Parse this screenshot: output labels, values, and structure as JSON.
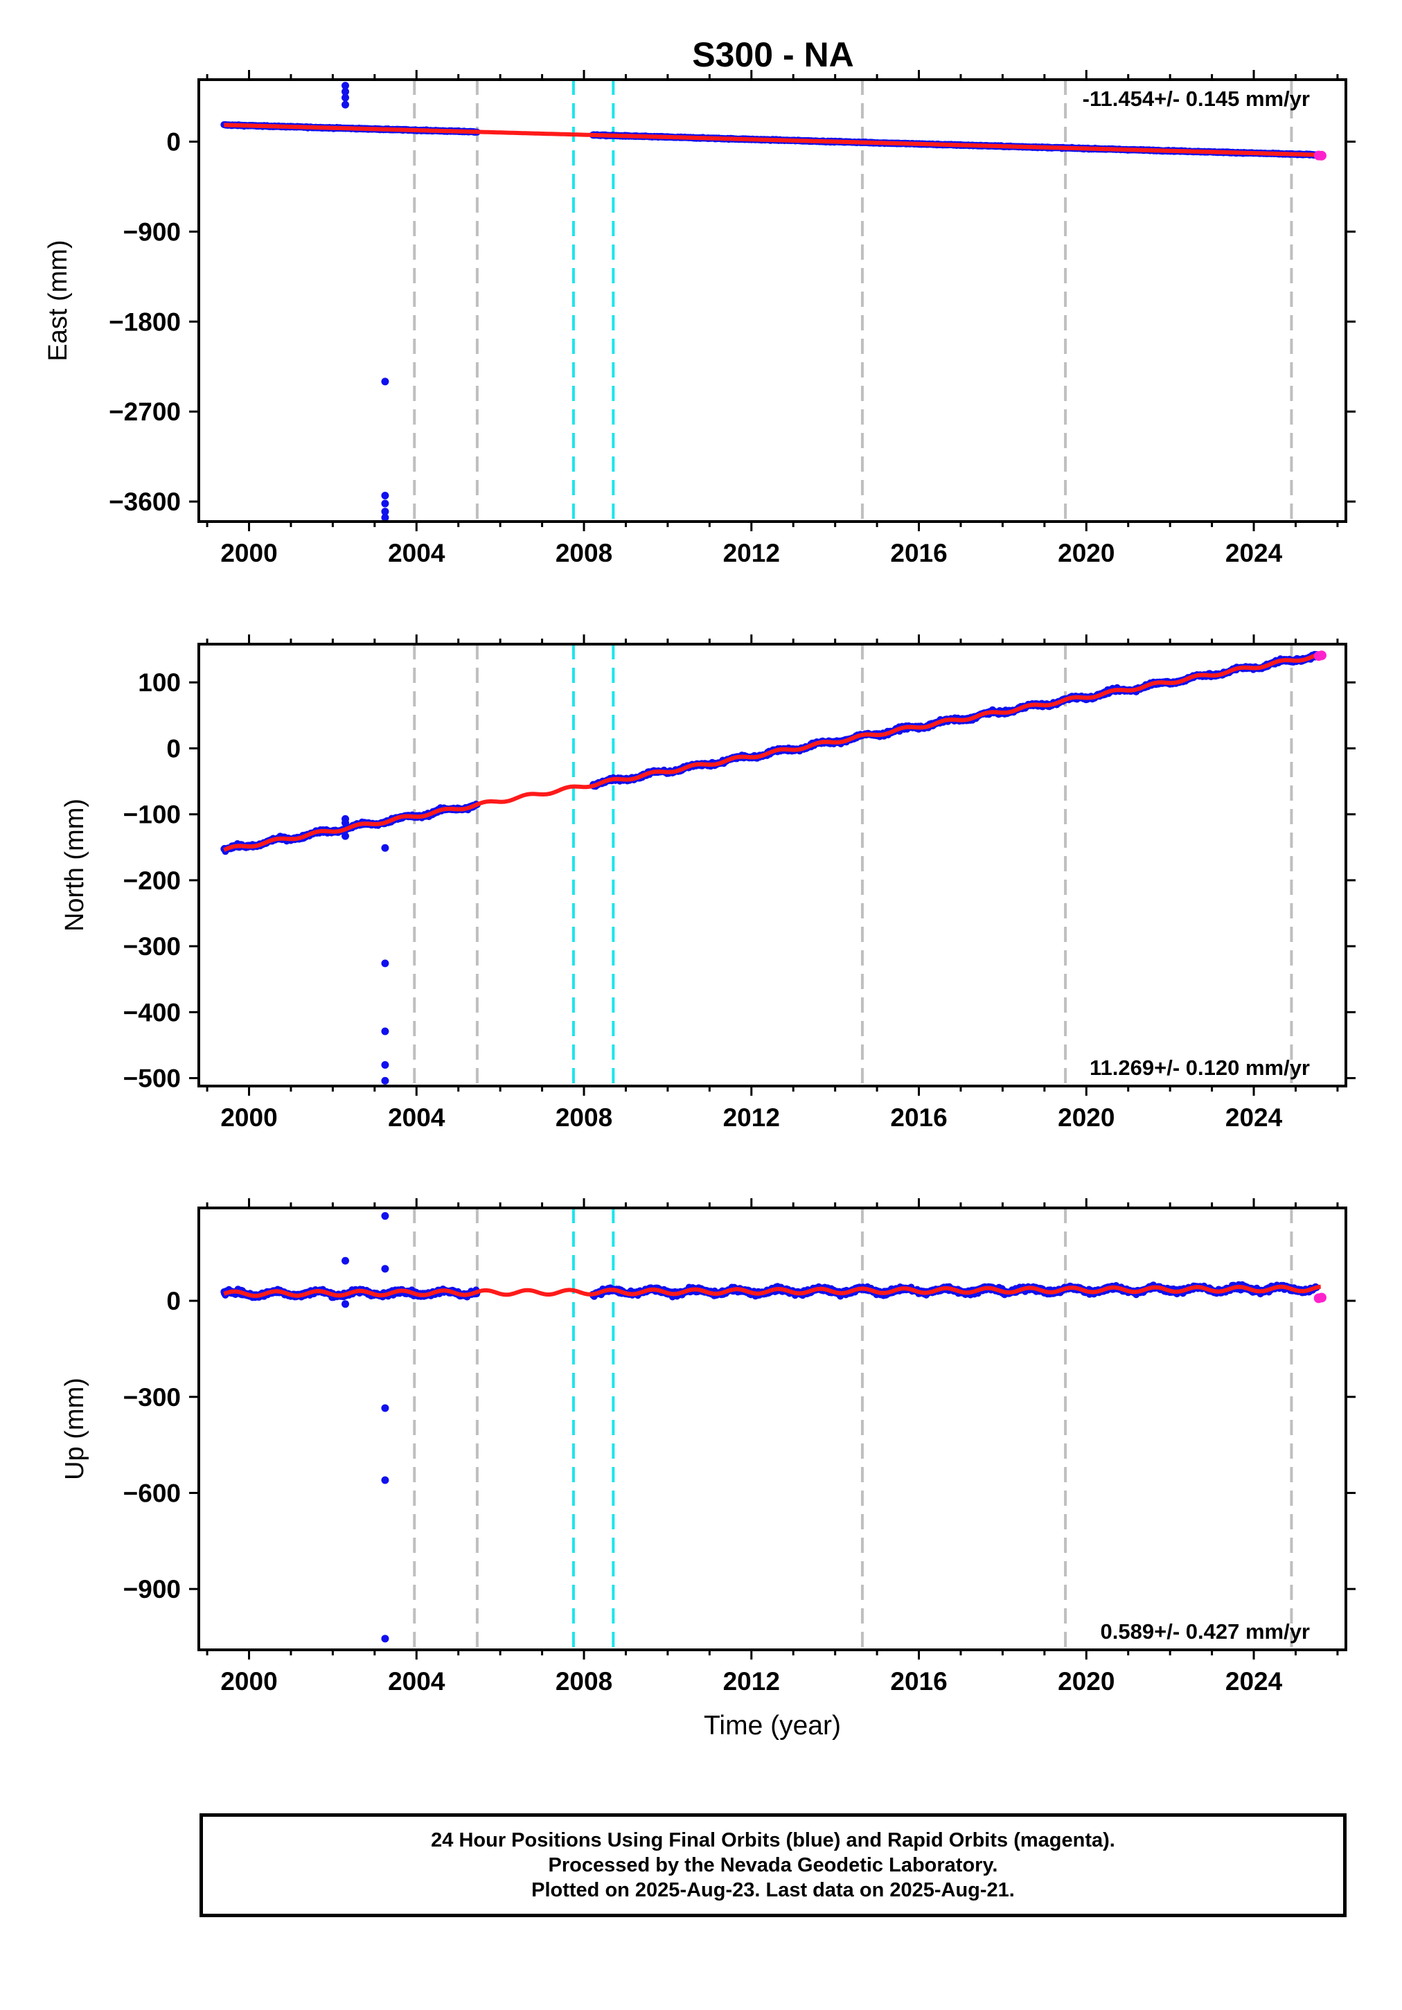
{
  "title": "S300 - NA",
  "colors": {
    "final_orbits": "#1010ee",
    "rapid_orbits": "#ff22cc",
    "model": "#ff1a1a",
    "event_gray": "#bfbfbf",
    "event_cyan": "#1ae6ee"
  },
  "events": {
    "gray": [
      2003.95,
      2005.45,
      2014.65,
      2019.5,
      2024.9
    ],
    "cyan": [
      2007.75,
      2008.7
    ]
  },
  "footer": {
    "line1": "24 Hour Positions Using Final Orbits (blue) and Rapid Orbits (magenta).",
    "line2": "Processed by the Nevada Geodetic Laboratory.",
    "line3": "Plotted on 2025-Aug-23. Last data on 2025-Aug-21."
  },
  "chart_data": [
    {
      "type": "scatter",
      "panel": "east",
      "title": "S300 - NA",
      "xlabel": "",
      "ylabel": "East (mm)",
      "xlim": [
        1998.8,
        2026.2
      ],
      "ylim": [
        -3800,
        620
      ],
      "xticks": [
        2000,
        2004,
        2008,
        2012,
        2016,
        2020,
        2024
      ],
      "yticks": [
        0,
        -900,
        -1800,
        -2700,
        -3600
      ],
      "rate_label": "-11.454+/- 0.145 mm/yr",
      "gaps": [
        [
          2005.45,
          2008.2
        ]
      ],
      "trend": {
        "x0": 1999.4,
        "y0": 167,
        "slope": -11.454,
        "seasonal_amp": 0,
        "noise": 5
      },
      "outliers": [
        {
          "x": 2002.3,
          "y": 560
        },
        {
          "x": 2002.3,
          "y": 500
        },
        {
          "x": 2002.3,
          "y": 440
        },
        {
          "x": 2002.3,
          "y": 370
        },
        {
          "x": 2003.25,
          "y": -2400
        },
        {
          "x": 2003.25,
          "y": -3540
        },
        {
          "x": 2003.25,
          "y": -3620
        },
        {
          "x": 2003.25,
          "y": -3700
        },
        {
          "x": 2003.25,
          "y": -3760
        }
      ],
      "rapid_points": [
        {
          "x": 2025.55,
          "y": -139
        },
        {
          "x": 2025.62,
          "y": -140
        }
      ]
    },
    {
      "type": "scatter",
      "panel": "north",
      "xlabel": "",
      "ylabel": "North (mm)",
      "xlim": [
        1998.8,
        2026.2
      ],
      "ylim": [
        -512,
        158
      ],
      "xticks": [
        2000,
        2004,
        2008,
        2012,
        2016,
        2020,
        2024
      ],
      "yticks": [
        100,
        0,
        -100,
        -200,
        -300,
        -400,
        -500
      ],
      "rate_label": "11.269+/- 0.120 mm/yr",
      "gaps": [
        [
          2005.45,
          2008.2
        ]
      ],
      "trend": {
        "x0": 1999.4,
        "y0": -154,
        "slope": 11.269,
        "seasonal_amp": 2.5,
        "noise": 2.5
      },
      "outliers": [
        {
          "x": 2002.3,
          "y": -107
        },
        {
          "x": 2002.3,
          "y": -113
        },
        {
          "x": 2002.3,
          "y": -133
        },
        {
          "x": 2003.25,
          "y": -151
        },
        {
          "x": 2003.25,
          "y": -326
        },
        {
          "x": 2003.25,
          "y": -429
        },
        {
          "x": 2003.25,
          "y": -480
        },
        {
          "x": 2003.25,
          "y": -504
        }
      ],
      "rapid_points": [
        {
          "x": 2025.55,
          "y": 140
        },
        {
          "x": 2025.62,
          "y": 141
        }
      ]
    },
    {
      "type": "scatter",
      "panel": "up",
      "xlabel": "Time (year)",
      "ylabel": "Up (mm)",
      "xlim": [
        1998.8,
        2026.2
      ],
      "ylim": [
        -1090,
        290
      ],
      "xticks": [
        2000,
        2004,
        2008,
        2012,
        2016,
        2020,
        2024
      ],
      "yticks": [
        0,
        -300,
        -600,
        -900
      ],
      "rate_label": "0.589+/- 0.427 mm/yr",
      "gaps": [
        [
          2005.45,
          2008.2
        ]
      ],
      "trend": {
        "x0": 1999.4,
        "y0": 22,
        "slope": 0.589,
        "seasonal_amp": 7,
        "noise": 7
      },
      "outliers": [
        {
          "x": 2002.3,
          "y": 125
        },
        {
          "x": 2002.3,
          "y": -10
        },
        {
          "x": 2003.25,
          "y": 265
        },
        {
          "x": 2003.25,
          "y": 100
        },
        {
          "x": 2003.25,
          "y": -335
        },
        {
          "x": 2003.25,
          "y": -560
        },
        {
          "x": 2003.25,
          "y": -1055
        }
      ],
      "rapid_points": [
        {
          "x": 2025.55,
          "y": 8
        },
        {
          "x": 2025.62,
          "y": 10
        }
      ]
    }
  ]
}
